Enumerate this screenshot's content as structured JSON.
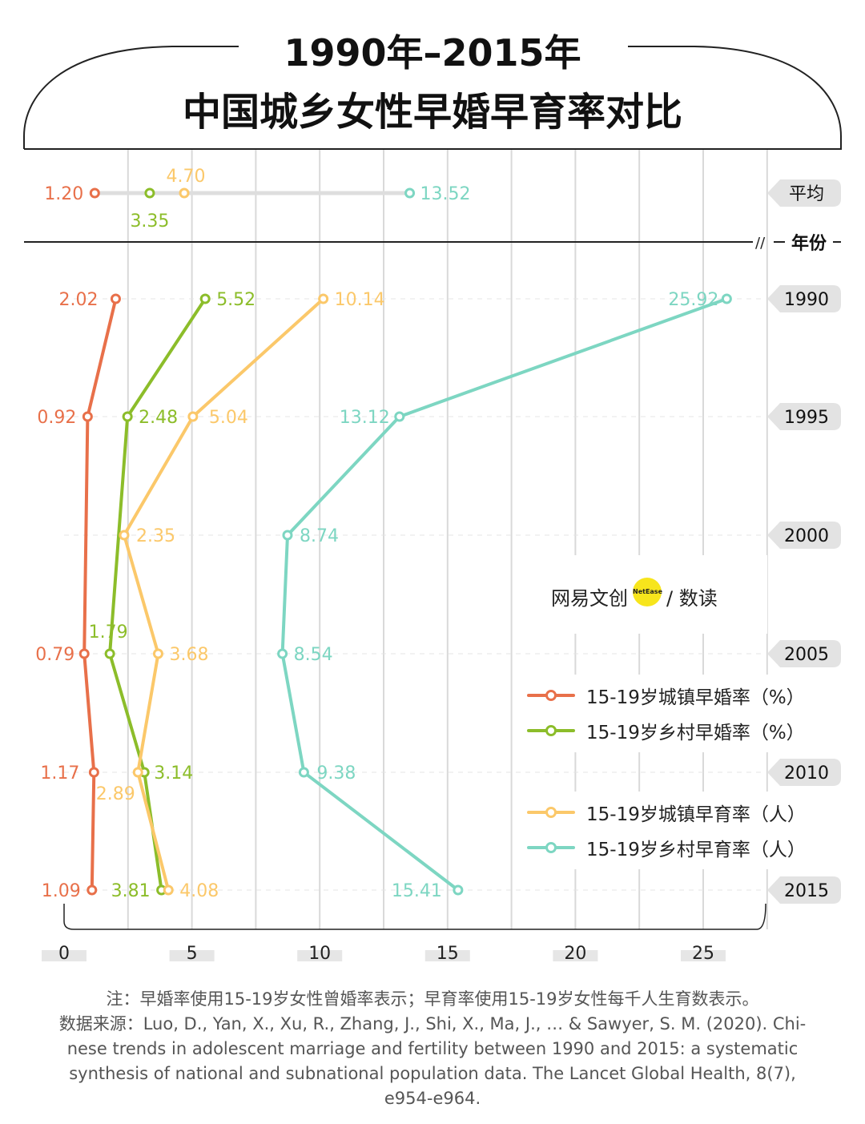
{
  "title_line1": "1990年–2015年",
  "title_line2": "中国城乡女性早婚早育率对比",
  "colors": {
    "urban_marriage": "#e8704a",
    "rural_marriage": "#8cbd2a",
    "urban_birth": "#fbc86a",
    "rural_birth": "#7dd6c2",
    "grid": "#d9d9d9",
    "tag": "#e3e3e3",
    "axis": "#222222"
  },
  "chart_data": {
    "type": "line",
    "orientation": "horizontal",
    "y_categories": [
      "1990",
      "1995",
      "2000",
      "2005",
      "2010",
      "2015"
    ],
    "xlim": [
      0,
      27.5
    ],
    "x_ticks": [
      0,
      5,
      10,
      15,
      20,
      25
    ],
    "row_header": "年份",
    "series": [
      {
        "key": "urban_marriage",
        "name": "15-19岁城镇早婚率（%）",
        "values": [
          2.02,
          0.92,
          null,
          0.79,
          1.17,
          1.09
        ],
        "labels": [
          "2.02",
          "0.92",
          "",
          "0.79",
          "1.17",
          "1.09"
        ]
      },
      {
        "key": "rural_marriage",
        "name": "15-19岁乡村早婚率（%）",
        "values": [
          5.52,
          2.48,
          null,
          1.79,
          3.14,
          3.81
        ],
        "labels": [
          "5.52",
          "2.48",
          "",
          "1.79",
          "3.14",
          "3.81"
        ]
      },
      {
        "key": "urban_birth",
        "name": "15-19岁城镇早育率（人）",
        "values": [
          10.14,
          5.04,
          2.35,
          3.68,
          2.89,
          4.08
        ],
        "labels": [
          "10.14",
          "5.04",
          "2.35",
          "3.68",
          "2.89",
          "4.08"
        ]
      },
      {
        "key": "rural_birth",
        "name": "15-19岁乡村早育率（人）",
        "values": [
          25.92,
          13.12,
          8.74,
          8.54,
          9.38,
          15.41
        ],
        "labels": [
          "25.92",
          "13.12",
          "8.74",
          "8.54",
          "9.38",
          "15.41"
        ]
      }
    ],
    "average": {
      "label": "平均",
      "values": {
        "urban_marriage": 1.2,
        "rural_marriage": 3.35,
        "urban_birth": 4.7,
        "rural_birth": 13.52
      },
      "labels": {
        "urban_marriage": "1.20",
        "rural_marriage": "3.35",
        "urban_birth": "4.70",
        "rural_birth": "13.52"
      }
    }
  },
  "legend": [
    {
      "key": "urban_marriage",
      "label": "15-19岁城镇早婚率（%）"
    },
    {
      "key": "rural_marriage",
      "label": "15-19岁乡村早婚率（%）"
    },
    {
      "key": "urban_birth",
      "label": "15-19岁城镇早育率（人）"
    },
    {
      "key": "rural_birth",
      "label": "15-19岁乡村早育率（人）"
    }
  ],
  "logo": {
    "text": "网易文创",
    "badge": "NetEase",
    "text2": "/ 数读"
  },
  "footnote": {
    "note": "注：早婚率使用15-19岁女性曾婚率表示；早育率使用15-19岁女性每千人生育数表示。",
    "source_lines": [
      "数据来源：Luo, D., Yan, X., Xu, R., Zhang, J., Shi, X., Ma, J., … & Sawyer, S. M. (2020). Chi-",
      "nese trends in adolescent marriage and fertility between 1990 and 2015: a systematic",
      "synthesis of national and subnational population data. The Lancet Global Health, 8(7),",
      "e954-e964."
    ]
  }
}
